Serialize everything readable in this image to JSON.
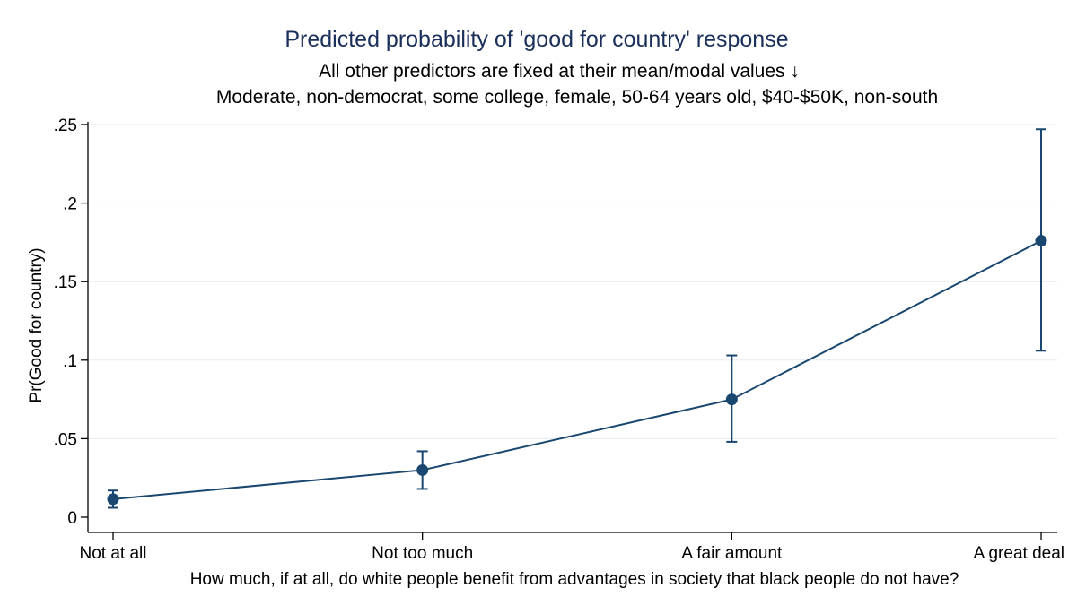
{
  "chart_data": {
    "type": "line",
    "title": "Predicted probability of 'good for country' response",
    "subtitle_lines": [
      "All other predictors are fixed at their mean/modal values ↓",
      "Moderate, non-democrat, some college, female, 50-64 years old, $40-$50K, non-south"
    ],
    "xlabel": "How much, if at all, do white people benefit from advantages in society that black people do not have?",
    "ylabel": "Pr(Good for country)",
    "categories": [
      "Not at all",
      "Not too much",
      "A fair amount",
      "A great deal"
    ],
    "series": [
      {
        "name": "Pr(Good for country)",
        "values": [
          0.0115,
          0.03,
          0.075,
          0.176
        ],
        "ci_lower": [
          0.006,
          0.018,
          0.048,
          0.106
        ],
        "ci_upper": [
          0.017,
          0.042,
          0.103,
          0.247
        ]
      }
    ],
    "ylim": [
      0,
      0.25
    ],
    "yticks": [
      0,
      0.05,
      0.1,
      0.15,
      0.2,
      0.25
    ],
    "ytick_labels": [
      "0",
      ".05",
      ".1",
      ".15",
      ".2",
      ".25"
    ],
    "grid": true,
    "colors": {
      "series": "#1a476f",
      "title": "#1a2f5a",
      "grid": "#e6ebf1"
    }
  }
}
